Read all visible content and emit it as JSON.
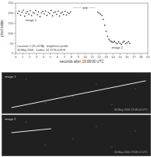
{
  "chart_data": {
    "type": "scatter",
    "title": "Lacrosse 2 (91-017A) · brightness profile",
    "subtitle": "30 May 2006 · Leiden, 52.15°N 4.49°E",
    "x_label": "seconds after 19:08:00 UTC",
    "y_label": "pixel value",
    "x": [
      0.3,
      0.5,
      0.7,
      0.9,
      1.1,
      1.3,
      1.5,
      1.7,
      1.9,
      2.1,
      2.3,
      2.5,
      2.7,
      2.9,
      3.1,
      3.3,
      3.5,
      3.7,
      3.9,
      4.1,
      4.3,
      4.5,
      4.7,
      4.9,
      5.1,
      5.3,
      5.5,
      5.7,
      5.9,
      6.1,
      6.3,
      6.5,
      6.7,
      6.9,
      7.1,
      7.3,
      7.5,
      7.7,
      7.9,
      11.8,
      12.0,
      12.2,
      12.4,
      12.6,
      12.8,
      13.0,
      13.2,
      13.4,
      13.6,
      13.8,
      14.0,
      14.2,
      14.4,
      14.6,
      14.8,
      15.0,
      15.2,
      15.4,
      15.6,
      15.8,
      16.0,
      16.2,
      16.4
    ],
    "values": [
      198,
      210,
      190,
      205,
      215,
      185,
      200,
      208,
      195,
      212,
      188,
      203,
      199,
      214,
      192,
      206,
      183,
      201,
      209,
      196,
      211,
      189,
      204,
      197,
      213,
      187,
      202,
      207,
      194,
      210,
      186,
      200,
      205,
      193,
      209,
      191,
      203,
      198,
      206,
      205,
      200,
      195,
      188,
      170,
      140,
      110,
      85,
      70,
      62,
      58,
      55,
      60,
      52,
      48,
      57,
      50,
      45,
      55,
      60,
      48,
      52,
      58,
      50
    ],
    "color": "#222222",
    "marker": "dot",
    "xlim": [
      0,
      19
    ],
    "xticks": [
      0,
      1,
      2,
      3,
      4,
      5,
      6,
      7,
      8,
      9,
      10,
      11,
      12,
      13,
      14,
      15,
      16,
      17,
      18,
      19
    ],
    "ylim": [
      0,
      250
    ],
    "yticks": [
      0,
      50,
      100,
      150,
      200,
      250
    ],
    "grid": false,
    "annotations": [
      {
        "text": "image 1",
        "x": 2.2,
        "y": 160
      },
      {
        "text": "gap",
        "x": 10,
        "y": 222
      },
      {
        "text": "image 2",
        "x": 14.6,
        "y": 25
      }
    ]
  },
  "images": [
    {
      "label": "image 1",
      "caption": "30 May 2006 19:08:00 UTC"
    },
    {
      "label": "image 2",
      "caption": "30 May 2006 19:08:12 UTC"
    }
  ]
}
